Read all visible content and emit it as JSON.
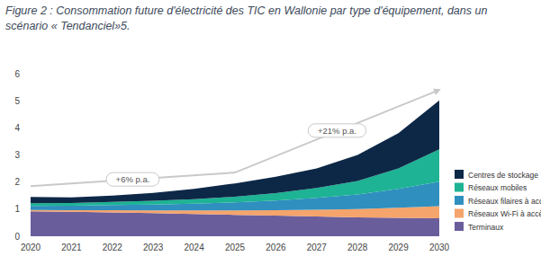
{
  "chart_data": {
    "type": "area",
    "title": "Figure 2 : Consommation future d'électricité des TIC en Wallonie par type d'équipement, dans un scénario « Tendanciel»5.",
    "stacked": true,
    "grid": false,
    "legend": "right",
    "x": [
      2020,
      2021,
      2022,
      2023,
      2024,
      2025,
      2026,
      2027,
      2028,
      2029,
      2030
    ],
    "xlim": [
      2020,
      2030
    ],
    "xticks": [
      2020,
      2021,
      2022,
      2023,
      2024,
      2025,
      2026,
      2027,
      2028,
      2029,
      2030
    ],
    "ylim": [
      0,
      6
    ],
    "yticks": [
      0,
      1,
      2,
      3,
      4,
      5,
      6
    ],
    "series": [
      {
        "name": "Terminaux",
        "color": "#6a5d9b",
        "values": [
          0.92,
          0.9,
          0.88,
          0.85,
          0.82,
          0.79,
          0.76,
          0.73,
          0.7,
          0.68,
          0.66
        ]
      },
      {
        "name": "Réseaux Wi-Fi à accès fixe",
        "color": "#f5a46c",
        "values": [
          0.05,
          0.06,
          0.08,
          0.1,
          0.13,
          0.16,
          0.2,
          0.25,
          0.3,
          0.37,
          0.45
        ]
      },
      {
        "name": "Réseaux filaires à accès fixe",
        "color": "#2f8fbf",
        "values": [
          0.15,
          0.17,
          0.19,
          0.22,
          0.25,
          0.3,
          0.36,
          0.44,
          0.54,
          0.7,
          0.9
        ]
      },
      {
        "name": "Réseaux mobiles",
        "color": "#1db394",
        "values": [
          0.1,
          0.1,
          0.12,
          0.14,
          0.17,
          0.21,
          0.27,
          0.36,
          0.5,
          0.75,
          1.2
        ]
      },
      {
        "name": "Centres de stockage",
        "color": "#0d2847",
        "values": [
          0.23,
          0.2,
          0.23,
          0.29,
          0.38,
          0.49,
          0.61,
          0.72,
          0.96,
          1.3,
          1.8
        ]
      }
    ],
    "annotations": [
      {
        "text": "+6% p.a.",
        "x": 2022.5,
        "y": 2.1
      },
      {
        "text": "+21% p.a.",
        "x": 2027.5,
        "y": 3.9
      }
    ],
    "trend_arrow": {
      "x": [
        2020,
        2025,
        2030
      ],
      "y": [
        1.85,
        2.35,
        5.4
      ]
    }
  }
}
